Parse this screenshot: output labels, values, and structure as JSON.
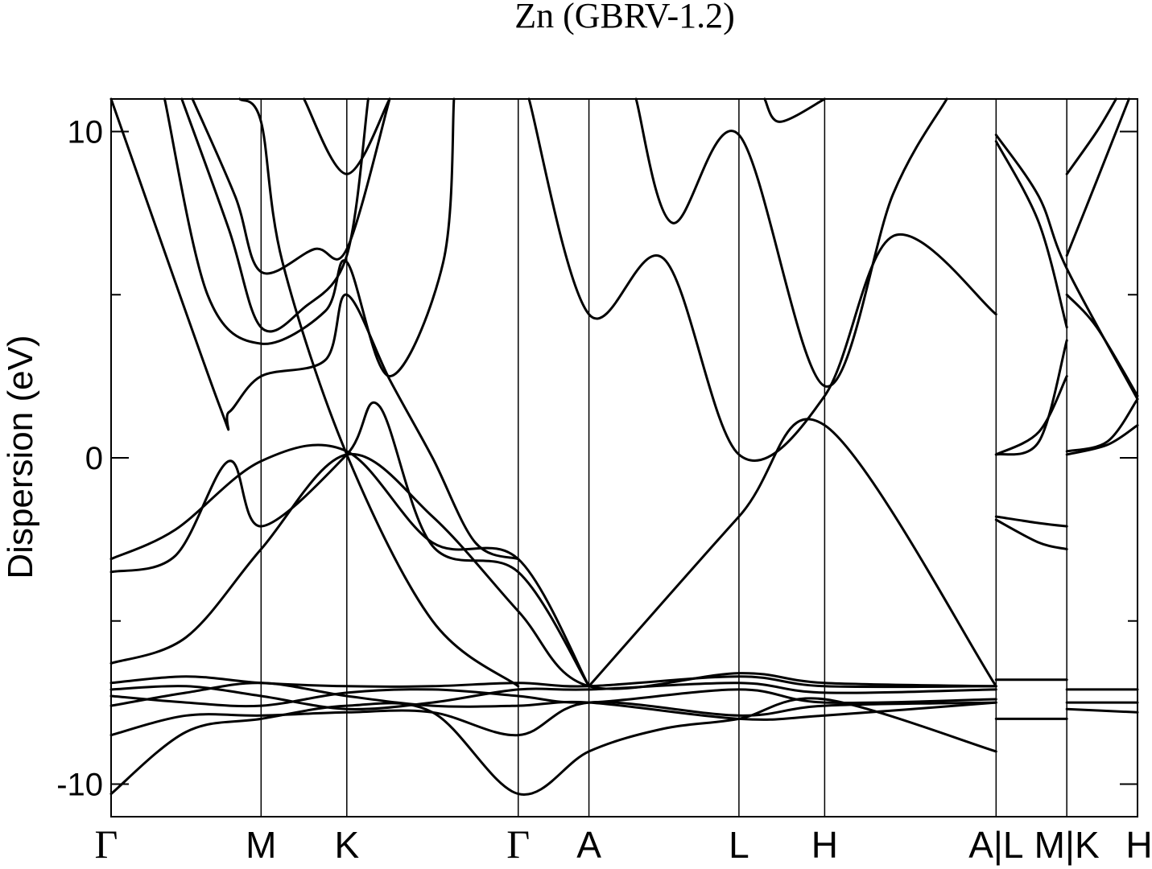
{
  "chart_data": {
    "type": "line",
    "title": "Zn (GBRV-1.2)",
    "ylabel": "Dispersion (eV)",
    "xlabel": "",
    "ylim": [
      -11,
      11
    ],
    "yticks_labeled": [
      10,
      0,
      -10
    ],
    "yticks_minor": [
      5,
      -5
    ],
    "kpath": [
      {
        "label": "Γ",
        "x": 0.0
      },
      {
        "label": "M",
        "x": 0.7
      },
      {
        "label": "K",
        "x": 1.1
      },
      {
        "label": "Γ",
        "x": 1.9
      },
      {
        "label": "A",
        "x": 2.23
      },
      {
        "label": "L",
        "x": 2.93
      },
      {
        "label": "H",
        "x": 3.33
      },
      {
        "label": "A|L",
        "x": 4.13
      },
      {
        "label": "M|K",
        "x": 4.46
      },
      {
        "label": "H",
        "x": 4.79
      }
    ],
    "xlim": [
      0,
      4.79
    ],
    "grid": false,
    "bands": [
      {
        "name": "",
        "points": [
          [
            0,
            -10.3
          ],
          [
            0.35,
            -8.4
          ],
          [
            0.7,
            -8.0
          ],
          [
            1.1,
            -7.6
          ],
          [
            1.5,
            -7.8
          ],
          [
            1.9,
            -10.3
          ],
          [
            2.23,
            -9.0
          ],
          [
            2.58,
            -8.3
          ],
          [
            2.93,
            -8.0
          ],
          [
            3.33,
            -7.4
          ],
          [
            4.13,
            -9.0
          ]
        ]
      },
      {
        "name": "",
        "points": [
          [
            0,
            -8.5
          ],
          [
            0.35,
            -7.9
          ],
          [
            0.7,
            -7.9
          ],
          [
            1.1,
            -7.8
          ],
          [
            1.5,
            -7.8
          ],
          [
            1.9,
            -8.5
          ],
          [
            2.23,
            -7.5
          ],
          [
            2.93,
            -7.9
          ],
          [
            3.33,
            -7.6
          ],
          [
            4.13,
            -7.5
          ]
        ]
      },
      {
        "name": "",
        "points": [
          [
            0,
            -7.6
          ],
          [
            0.35,
            -7.2
          ],
          [
            0.7,
            -6.9
          ],
          [
            1.1,
            -7.3
          ],
          [
            1.5,
            -7.6
          ],
          [
            1.9,
            -7.6
          ],
          [
            2.23,
            -7.5
          ],
          [
            2.93,
            -8.0
          ],
          [
            3.33,
            -7.9
          ],
          [
            4.13,
            -7.5
          ]
        ]
      },
      {
        "name": "",
        "points": [
          [
            0,
            -7.3
          ],
          [
            0.35,
            -7.5
          ],
          [
            0.7,
            -7.6
          ],
          [
            1.1,
            -7.2
          ],
          [
            1.5,
            -7.1
          ],
          [
            1.9,
            -7.3
          ],
          [
            2.23,
            -7.5
          ],
          [
            2.93,
            -7.1
          ],
          [
            3.33,
            -7.5
          ],
          [
            4.13,
            -7.4
          ]
        ]
      },
      {
        "name": "",
        "points": [
          [
            0,
            -7.1
          ],
          [
            0.35,
            -7.0
          ],
          [
            0.7,
            -7.3
          ],
          [
            1.1,
            -7.7
          ],
          [
            1.5,
            -7.5
          ],
          [
            1.9,
            -7.1
          ],
          [
            2.23,
            -7.1
          ],
          [
            2.93,
            -6.9
          ],
          [
            3.33,
            -7.2
          ],
          [
            4.13,
            -7.1
          ]
        ]
      },
      {
        "name": "",
        "points": [
          [
            0,
            -6.9
          ],
          [
            0.35,
            -6.7
          ],
          [
            0.7,
            -6.9
          ],
          [
            1.1,
            -7.0
          ],
          [
            1.5,
            -7.0
          ],
          [
            1.9,
            -6.9
          ],
          [
            2.23,
            -7.0
          ],
          [
            2.93,
            -6.7
          ],
          [
            3.33,
            -7.0
          ],
          [
            4.13,
            -7.0
          ]
        ]
      },
      {
        "name": "",
        "points": [
          [
            0,
            -6.3
          ],
          [
            0.35,
            -5.5
          ],
          [
            0.7,
            -2.8
          ],
          [
            1.1,
            0.1
          ],
          [
            1.5,
            -1.8
          ],
          [
            1.9,
            -4.7
          ],
          [
            2.23,
            -7.0
          ],
          [
            2.93,
            -6.6
          ],
          [
            3.33,
            -6.9
          ],
          [
            4.13,
            -7.0
          ]
        ]
      },
      {
        "name": "",
        "points": [
          [
            0,
            -3.1
          ],
          [
            0.3,
            -2.2
          ],
          [
            0.7,
            -0.1
          ],
          [
            1.1,
            0.2
          ],
          [
            1.5,
            -2.6
          ],
          [
            1.9,
            -3.1
          ],
          [
            2.23,
            -7.0
          ]
        ]
      },
      {
        "name": "",
        "points": [
          [
            0,
            -3.5
          ],
          [
            0.3,
            -3.0
          ],
          [
            0.55,
            -0.1
          ],
          [
            0.7,
            -2.1
          ],
          [
            1.1,
            0.1
          ],
          [
            1.25,
            1.6
          ],
          [
            1.5,
            -2.7
          ],
          [
            1.9,
            -3.5
          ],
          [
            2.23,
            -7.0
          ]
        ]
      },
      {
        "name": "",
        "points": [
          [
            0,
            11
          ],
          [
            0.5,
            1.7
          ],
          [
            0.55,
            1.4
          ],
          [
            0.7,
            2.5
          ],
          [
            1.0,
            3.0
          ],
          [
            1.1,
            5.0
          ],
          [
            1.3,
            2.4
          ],
          [
            1.5,
            0
          ],
          [
            1.7,
            -2.6
          ],
          [
            1.9,
            -3.1
          ]
        ]
      },
      {
        "name": "",
        "points": [
          [
            0.25,
            11
          ],
          [
            0.45,
            5.0
          ],
          [
            0.7,
            3.5
          ],
          [
            1.0,
            4.5
          ],
          [
            1.1,
            6.0
          ],
          [
            1.3,
            2.5
          ],
          [
            1.55,
            6.0
          ],
          [
            1.6,
            11
          ]
        ]
      },
      {
        "name": "",
        "points": [
          [
            0.33,
            11
          ],
          [
            0.55,
            7.0
          ],
          [
            0.7,
            4.0
          ],
          [
            0.9,
            4.6
          ],
          [
            1.1,
            6.2
          ],
          [
            1.2,
            11
          ]
        ]
      },
      {
        "name": "",
        "points": [
          [
            0.38,
            11
          ],
          [
            0.58,
            8.0
          ],
          [
            0.7,
            5.7
          ],
          [
            0.95,
            6.4
          ],
          [
            1.1,
            6.4
          ],
          [
            1.3,
            11
          ]
        ]
      },
      {
        "name": "",
        "points": [
          [
            0.6,
            11
          ],
          [
            0.7,
            10.3
          ],
          [
            0.8,
            6.0
          ],
          [
            1.1,
            0.1
          ],
          [
            1.5,
            -5.0
          ],
          [
            1.9,
            -7.0
          ]
        ]
      },
      {
        "name": "",
        "points": [
          [
            0.9,
            11
          ],
          [
            1.1,
            8.7
          ],
          [
            1.3,
            11
          ]
        ]
      },
      {
        "name": "",
        "points": [
          [
            1.95,
            11
          ],
          [
            2.23,
            4.4
          ],
          [
            2.58,
            6.1
          ],
          [
            2.93,
            0.1
          ],
          [
            3.33,
            1.9
          ],
          [
            3.65,
            6.8
          ],
          [
            4.13,
            4.4
          ]
        ]
      },
      {
        "name": "",
        "points": [
          [
            2.45,
            11
          ],
          [
            2.62,
            7.2
          ],
          [
            2.93,
            9.9
          ],
          [
            3.33,
            2.2
          ],
          [
            3.65,
            8.1
          ],
          [
            3.9,
            11
          ]
        ]
      },
      {
        "name": "",
        "points": [
          [
            3.05,
            11
          ],
          [
            3.12,
            10.3
          ],
          [
            3.33,
            11
          ]
        ]
      },
      {
        "name": "",
        "points": [
          [
            2.23,
            -7.0
          ],
          [
            2.93,
            -1.8
          ],
          [
            3.33,
            1.0
          ],
          [
            4.13,
            -7.0
          ]
        ]
      },
      {
        "name": "",
        "points": [
          [
            4.13,
            9.9
          ],
          [
            4.33,
            8.0
          ],
          [
            4.46,
            5.8
          ],
          [
            4.79,
            1.8
          ]
        ]
      },
      {
        "name": "",
        "points": [
          [
            4.13,
            9.7
          ],
          [
            4.33,
            7.2
          ],
          [
            4.46,
            4.0
          ]
        ]
      },
      {
        "name": "",
        "points": [
          [
            4.13,
            0.1
          ],
          [
            4.33,
            0.5
          ],
          [
            4.46,
            3.6
          ]
        ]
      },
      {
        "name": "",
        "points": [
          [
            4.13,
            0.1
          ],
          [
            4.33,
            0.8
          ],
          [
            4.46,
            2.5
          ]
        ]
      },
      {
        "name": "",
        "points": [
          [
            4.13,
            -1.8
          ],
          [
            4.33,
            -2.0
          ],
          [
            4.46,
            -2.1
          ]
        ]
      },
      {
        "name": "",
        "points": [
          [
            4.13,
            -1.9
          ],
          [
            4.33,
            -2.6
          ],
          [
            4.46,
            -2.8
          ]
        ]
      },
      {
        "name": "",
        "points": [
          [
            4.46,
            8.7
          ],
          [
            4.6,
            10.0
          ],
          [
            4.69,
            11
          ]
        ]
      },
      {
        "name": "",
        "points": [
          [
            4.46,
            6.2
          ],
          [
            4.6,
            8.5
          ],
          [
            4.75,
            11
          ]
        ]
      },
      {
        "name": "",
        "points": [
          [
            4.46,
            5.0
          ],
          [
            4.6,
            4.0
          ],
          [
            4.79,
            1.9
          ]
        ]
      },
      {
        "name": "",
        "points": [
          [
            4.46,
            0.2
          ],
          [
            4.65,
            0.5
          ],
          [
            4.79,
            1.8
          ]
        ]
      },
      {
        "name": "",
        "points": [
          [
            4.46,
            0.1
          ],
          [
            4.65,
            0.4
          ],
          [
            4.79,
            1.0
          ]
        ]
      },
      {
        "name": "",
        "points": [
          [
            4.13,
            -6.8
          ],
          [
            4.46,
            -6.8
          ]
        ]
      },
      {
        "name": "",
        "points": [
          [
            4.13,
            -8.0
          ],
          [
            4.46,
            -8.0
          ]
        ]
      },
      {
        "name": "",
        "points": [
          [
            4.46,
            -7.1
          ],
          [
            4.79,
            -7.1
          ]
        ]
      },
      {
        "name": "",
        "points": [
          [
            4.46,
            -7.5
          ],
          [
            4.79,
            -7.5
          ]
        ]
      },
      {
        "name": "",
        "points": [
          [
            4.46,
            -7.7
          ],
          [
            4.79,
            -7.8
          ]
        ]
      }
    ]
  }
}
